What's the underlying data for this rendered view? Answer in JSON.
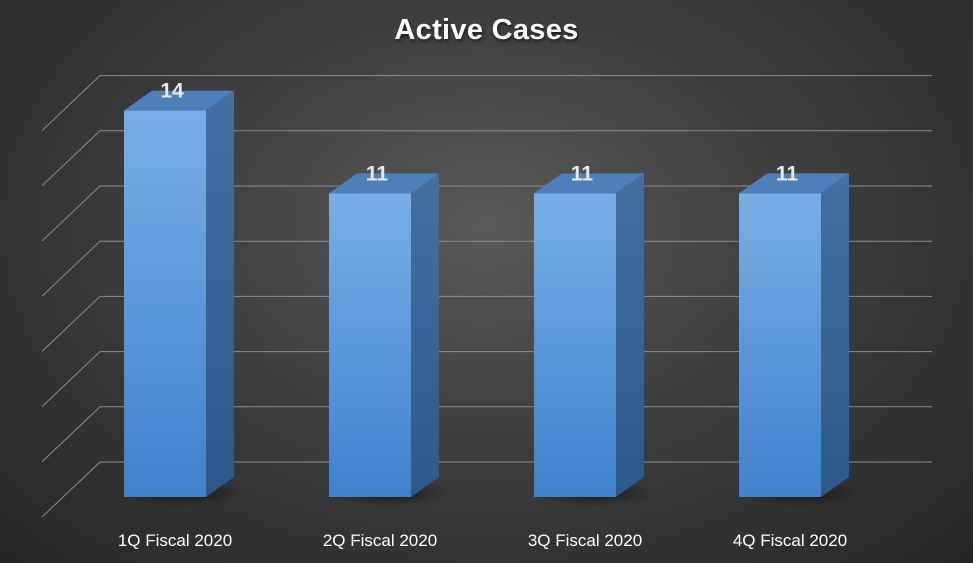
{
  "chart_data": {
    "type": "bar",
    "title": "Active Cases",
    "categories": [
      "1Q Fiscal 2020",
      "2Q Fiscal 2020",
      "3Q Fiscal 2020",
      "4Q Fiscal 2020"
    ],
    "values": [
      14,
      11,
      11,
      11
    ],
    "data_labels": [
      "14",
      "11",
      "11",
      "11"
    ],
    "xlabel": "",
    "ylabel": "",
    "ylim": [
      0,
      16
    ],
    "grid": true,
    "legend": "none",
    "colors": {
      "bar_front": "#5b9bd5",
      "bar_side": "#3a6ea5",
      "bar_top": "#4d7fb8",
      "gridline": "#8c8c8c",
      "text": "#ffffff"
    }
  }
}
